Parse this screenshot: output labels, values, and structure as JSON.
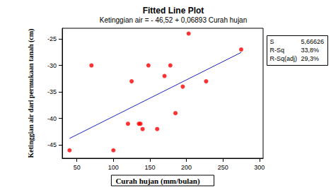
{
  "chart_data": {
    "type": "scatter",
    "title": "Fitted Line Plot",
    "subtitle": "Ketinggian air = - 46,52 + 0,06893 Curah hujan",
    "x_label": "Curah hujan (mm/bulan)",
    "y_label": "Ketinggian air dari permukaan tanah (cm)",
    "series": [
      {
        "type": "scatter",
        "color": "#ff0000",
        "marker": "circle",
        "x": [
          40,
          70,
          100,
          120,
          125,
          135,
          137,
          140,
          148,
          160,
          170,
          178,
          185,
          195,
          203,
          227,
          275
        ],
        "values": [
          -46,
          -30,
          -46,
          -41,
          -33,
          -41,
          -41,
          -42,
          -30,
          -42,
          -32,
          -30,
          -39,
          -34,
          -24,
          -33,
          -27
        ]
      },
      {
        "type": "line",
        "color": "#1f1fbf",
        "line_style": "solid",
        "x": [
          40,
          275
        ],
        "values": [
          -43.76,
          -27.56
        ]
      }
    ],
    "stats": [
      {
        "label": "S",
        "value": "5,66626"
      },
      {
        "label": "R-Sq",
        "value": "33,8%"
      },
      {
        "label": "R-Sq(adj)",
        "value": "29,3%"
      }
    ],
    "xlim": [
      30,
      305
    ],
    "xticks": [
      50,
      100,
      150,
      200,
      250,
      300
    ],
    "ylim": [
      -47.5,
      -23
    ],
    "yticks": [
      -45,
      -40,
      -35,
      -30,
      -25
    ],
    "grid": false,
    "legend": "none"
  }
}
